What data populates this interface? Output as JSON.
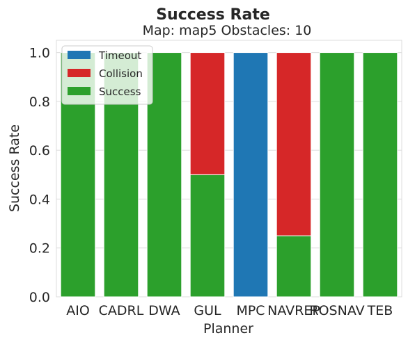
{
  "chart_data": {
    "type": "bar",
    "stacked": true,
    "title": "Success Rate",
    "subtitle": "Map: map5 Obstacles: 10",
    "xlabel": "Planner",
    "ylabel": "Success Rate",
    "ylim": [
      0,
      1.05
    ],
    "yticks": [
      "0.0",
      "0.2",
      "0.4",
      "0.6",
      "0.8",
      "1.0"
    ],
    "grid": true,
    "legend_position": "top-left",
    "categories": [
      "AIO",
      "CADRL",
      "DWA",
      "GUL",
      "MPC",
      "NAVREP",
      "ROSNAV",
      "TEB"
    ],
    "series": [
      {
        "name": "Success",
        "color": "#2ca02c",
        "values": [
          1.0,
          1.0,
          1.0,
          0.5,
          0.0,
          0.25,
          1.0,
          1.0
        ]
      },
      {
        "name": "Collision",
        "color": "#d62728",
        "values": [
          0.0,
          0.0,
          0.0,
          0.5,
          0.0,
          0.75,
          0.0,
          0.0
        ]
      },
      {
        "name": "Timeout",
        "color": "#1f77b4",
        "values": [
          0.0,
          0.0,
          0.0,
          0.0,
          1.0,
          0.0,
          0.0,
          0.0
        ]
      }
    ],
    "legend_order": [
      "Timeout",
      "Collision",
      "Success"
    ]
  }
}
